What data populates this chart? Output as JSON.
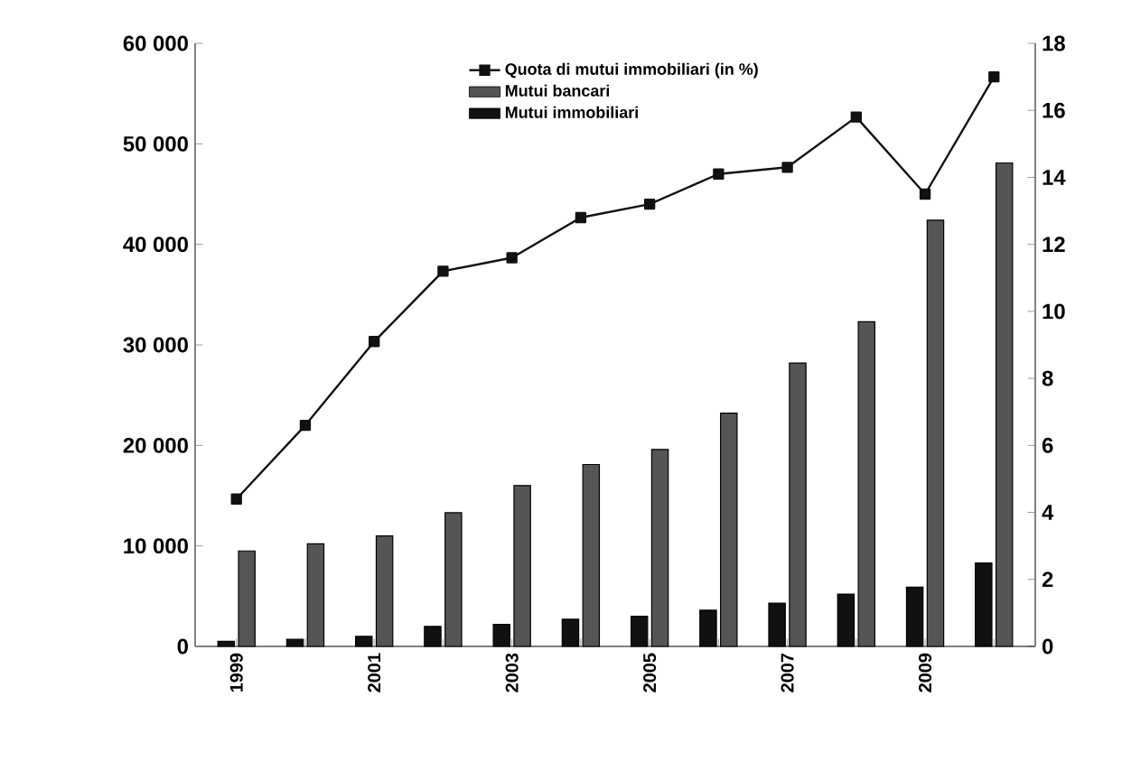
{
  "chart_data": {
    "type": "bar",
    "categories": [
      "1999",
      null,
      "2001",
      null,
      "2003",
      null,
      "2005",
      null,
      "2007",
      null,
      "2009",
      null
    ],
    "series": [
      {
        "name": "Mutui immobiliari",
        "color": "#111111",
        "values": [
          500,
          700,
          1000,
          2000,
          2200,
          2700,
          3000,
          3600,
          4300,
          5200,
          5900,
          8300
        ]
      },
      {
        "name": "Mutui bancari",
        "color": "#555555",
        "values": [
          9500,
          10200,
          11000,
          13300,
          16000,
          18100,
          19600,
          23200,
          28200,
          32300,
          42400,
          48100
        ]
      },
      {
        "name": "Quota di mutui immobiliari (in %)",
        "type": "line",
        "axis": "y2",
        "color": "#111111",
        "marker": "square",
        "values": [
          4.4,
          6.6,
          9.1,
          11.2,
          11.6,
          12.8,
          13.2,
          14.1,
          14.3,
          15.8,
          13.5,
          17.0
        ]
      }
    ],
    "ylim": [
      0,
      60000
    ],
    "yticks": [
      0,
      {
        "value": 10000,
        "label": "10 000"
      },
      {
        "value": 20000,
        "label": "20 000"
      },
      {
        "value": 30000,
        "label": "30 000"
      },
      {
        "value": 40000,
        "label": "40 000"
      },
      {
        "value": 50000,
        "label": "50 000"
      },
      {
        "value": 60000,
        "label": "60 000"
      }
    ],
    "y2lim": [
      0,
      18
    ],
    "y2ticks": [
      0,
      2,
      4,
      6,
      8,
      10,
      12,
      14,
      16,
      18
    ],
    "legend": "top",
    "grid": false
  }
}
